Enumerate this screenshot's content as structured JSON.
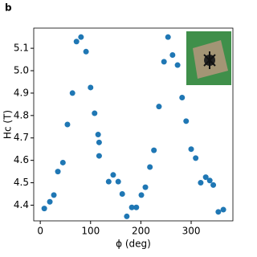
{
  "chart_data": {
    "type": "scatter",
    "panel_label": "b",
    "xlabel": "ϕ (deg)",
    "ylabel": "Hc (T)",
    "x": [
      8,
      19,
      27,
      35,
      45,
      54,
      64,
      72,
      81,
      91,
      100,
      108,
      115,
      117,
      117,
      136,
      145,
      155,
      163,
      172,
      182,
      191,
      201,
      209,
      218,
      226,
      236,
      246,
      254,
      263,
      273,
      282,
      290,
      300,
      309,
      319,
      329,
      337,
      344,
      354,
      364
    ],
    "y": [
      4.385,
      4.415,
      4.445,
      4.55,
      4.59,
      4.76,
      4.9,
      5.13,
      5.15,
      5.085,
      4.925,
      4.81,
      4.715,
      4.68,
      4.62,
      4.505,
      4.535,
      4.505,
      4.45,
      4.35,
      4.39,
      4.39,
      4.445,
      4.48,
      4.57,
      4.645,
      4.84,
      5.04,
      5.15,
      5.07,
      5.025,
      4.88,
      4.775,
      4.65,
      4.61,
      4.5,
      4.525,
      4.51,
      4.49,
      4.37,
      4.38
    ],
    "color": "#1f77b4",
    "xlim": [
      -13,
      383
    ],
    "ylim": [
      4.33,
      5.19
    ],
    "xticks": [
      0,
      100,
      200,
      300
    ],
    "yticks": [
      4.4,
      4.5,
      4.6,
      4.7,
      4.8,
      4.9,
      {
        "value": 5,
        "label": "5.0"
      },
      5.1
    ]
  }
}
